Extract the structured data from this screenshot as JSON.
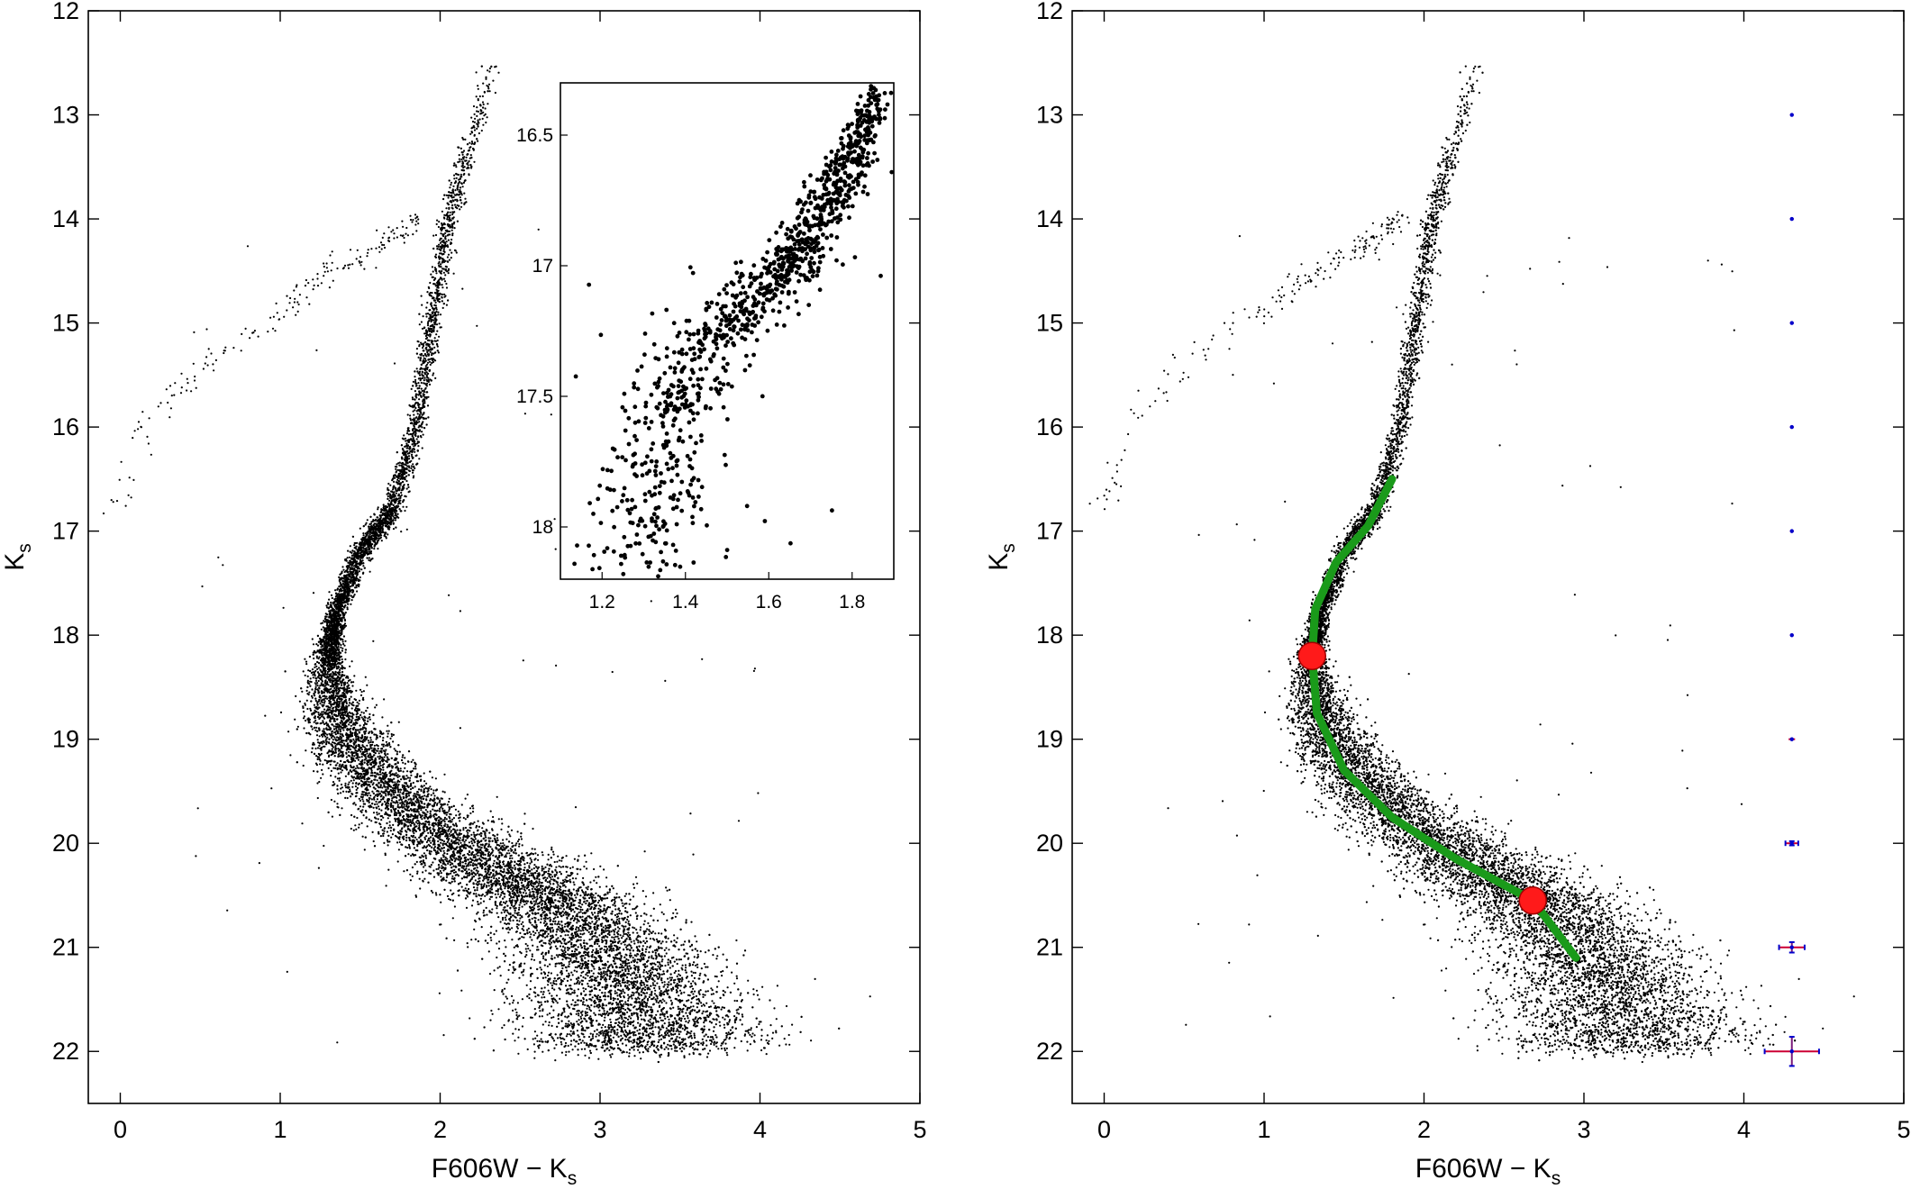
{
  "chart_data": [
    {
      "type": "scatter",
      "panel": "left",
      "title": "",
      "xlabel_main": "F606W − K",
      "xlabel_sub": "s",
      "ylabel_main": "K",
      "ylabel_sub": "s",
      "xlim": [
        -0.2,
        5
      ],
      "ylim": [
        22.5,
        12
      ],
      "y_inverted": true,
      "x_ticks": [
        0,
        1,
        2,
        3,
        4,
        5
      ],
      "y_ticks": [
        12,
        13,
        14,
        15,
        16,
        17,
        18,
        19,
        20,
        21,
        22
      ],
      "grid": false,
      "series": [
        {
          "kind": "cmd-ridge",
          "points": [
            {
              "x": 2.35,
              "y": 12.45
            },
            {
              "x": 2.2,
              "y": 13.2
            },
            {
              "x": 2.05,
              "y": 14.0
            },
            {
              "x": 1.95,
              "y": 15.0
            },
            {
              "x": 1.85,
              "y": 16.0
            },
            {
              "x": 1.7,
              "y": 16.8
            },
            {
              "x": 1.5,
              "y": 17.2
            },
            {
              "x": 1.35,
              "y": 17.8
            },
            {
              "x": 1.3,
              "y": 18.2
            },
            {
              "x": 1.35,
              "y": 18.8
            },
            {
              "x": 1.55,
              "y": 19.3
            },
            {
              "x": 1.9,
              "y": 19.8
            },
            {
              "x": 2.3,
              "y": 20.2
            },
            {
              "x": 2.7,
              "y": 20.55
            },
            {
              "x": 3.0,
              "y": 21.0
            },
            {
              "x": 3.2,
              "y": 21.5
            },
            {
              "x": 3.3,
              "y": 22.0
            }
          ]
        },
        {
          "kind": "horizontal-branch",
          "points": [
            {
              "x": 1.85,
              "y": 14.0
            },
            {
              "x": 1.6,
              "y": 14.3
            },
            {
              "x": 1.3,
              "y": 14.5
            },
            {
              "x": 1.0,
              "y": 14.9
            },
            {
              "x": 0.6,
              "y": 15.3
            },
            {
              "x": 0.2,
              "y": 15.9
            },
            {
              "x": -0.05,
              "y": 16.9
            }
          ]
        }
      ],
      "inset": {
        "xlim": [
          1.1,
          1.9
        ],
        "ylim": [
          18.2,
          16.3
        ],
        "y_inverted": true,
        "x_ticks": [
          1.2,
          1.4,
          1.6,
          1.8
        ],
        "x_tick_labels": [
          "1.2",
          "1.4",
          "1.6",
          "1.8"
        ],
        "y_ticks": [
          16.5,
          17,
          17.5,
          18
        ],
        "y_tick_labels": [
          "16.5",
          "17",
          "17.5",
          "18"
        ],
        "ridge": [
          {
            "x": 1.3,
            "y": 18.2
          },
          {
            "x": 1.32,
            "y": 17.9
          },
          {
            "x": 1.36,
            "y": 17.6
          },
          {
            "x": 1.42,
            "y": 17.35
          },
          {
            "x": 1.55,
            "y": 17.15
          },
          {
            "x": 1.65,
            "y": 17.0
          },
          {
            "x": 1.72,
            "y": 16.8
          },
          {
            "x": 1.8,
            "y": 16.6
          },
          {
            "x": 1.86,
            "y": 16.35
          }
        ]
      }
    },
    {
      "type": "scatter",
      "panel": "right",
      "title": "",
      "xlabel_main": "F606W − K",
      "xlabel_sub": "s",
      "ylabel_main": "K",
      "ylabel_sub": "s",
      "xlim": [
        -0.2,
        5
      ],
      "ylim": [
        22.5,
        12
      ],
      "y_inverted": true,
      "x_ticks": [
        0,
        1,
        2,
        3,
        4,
        5
      ],
      "y_ticks": [
        12,
        13,
        14,
        15,
        16,
        17,
        18,
        19,
        20,
        21,
        22
      ],
      "grid": false,
      "fiducial_line": {
        "color": "#1a9a1a",
        "points": [
          {
            "x": 1.8,
            "y": 16.5
          },
          {
            "x": 1.65,
            "y": 16.95
          },
          {
            "x": 1.45,
            "y": 17.3
          },
          {
            "x": 1.32,
            "y": 17.75
          },
          {
            "x": 1.3,
            "y": 18.2
          },
          {
            "x": 1.33,
            "y": 18.75
          },
          {
            "x": 1.5,
            "y": 19.3
          },
          {
            "x": 1.8,
            "y": 19.75
          },
          {
            "x": 2.2,
            "y": 20.15
          },
          {
            "x": 2.68,
            "y": 20.55
          },
          {
            "x": 2.95,
            "y": 21.1
          }
        ]
      },
      "markers": {
        "color": "#ff1a1a",
        "points": [
          {
            "x": 1.3,
            "y": 18.2
          },
          {
            "x": 2.68,
            "y": 20.55
          }
        ]
      },
      "error_bars": {
        "x": 4.3,
        "color": "#0000cc",
        "points": [
          {
            "y": 13,
            "xerr": 0.01,
            "yerr": 0.01
          },
          {
            "y": 14,
            "xerr": 0.01,
            "yerr": 0.01
          },
          {
            "y": 15,
            "xerr": 0.01,
            "yerr": 0.01
          },
          {
            "y": 16,
            "xerr": 0.01,
            "yerr": 0.01
          },
          {
            "y": 17,
            "xerr": 0.01,
            "yerr": 0.01
          },
          {
            "y": 18,
            "xerr": 0.01,
            "yerr": 0.01
          },
          {
            "y": 19,
            "xerr": 0.02,
            "yerr": 0.01
          },
          {
            "y": 20,
            "xerr": 0.04,
            "yerr": 0.02
          },
          {
            "y": 21,
            "xerr": 0.08,
            "yerr": 0.05
          },
          {
            "y": 22,
            "xerr": 0.17,
            "yerr": 0.14
          }
        ]
      }
    }
  ]
}
